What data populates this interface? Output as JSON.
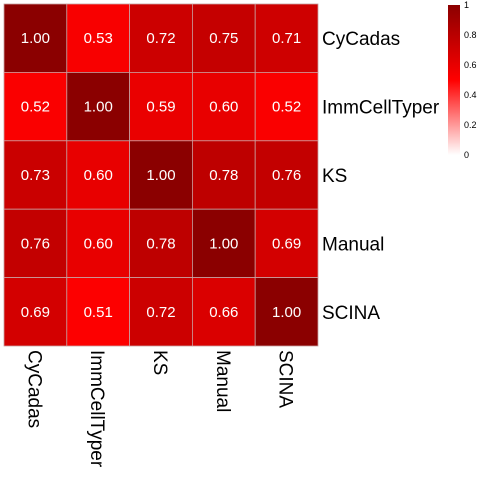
{
  "chart_data": {
    "type": "heatmap",
    "rows": [
      "CyCadas",
      "ImmCellTyper",
      "KS",
      "Manual",
      "SCINA"
    ],
    "columns": [
      "CyCadas",
      "ImmCellTyper",
      "KS",
      "Manual",
      "SCINA"
    ],
    "values": [
      [
        1.0,
        0.53,
        0.72,
        0.75,
        0.71
      ],
      [
        0.52,
        1.0,
        0.59,
        0.6,
        0.52
      ],
      [
        0.73,
        0.6,
        1.0,
        0.78,
        0.76
      ],
      [
        0.76,
        0.6,
        0.78,
        1.0,
        0.69
      ],
      [
        0.69,
        0.51,
        0.72,
        0.66,
        1.0
      ]
    ],
    "cell_labels": [
      [
        "1.00",
        "0.53",
        "0.72",
        "0.75",
        "0.71"
      ],
      [
        "0.52",
        "1.00",
        "0.59",
        "0.60",
        "0.52"
      ],
      [
        "0.73",
        "0.60",
        "1.00",
        "0.78",
        "0.76"
      ],
      [
        "0.76",
        "0.60",
        "0.78",
        "1.00",
        "0.69"
      ],
      [
        "0.69",
        "0.51",
        "0.72",
        "0.66",
        "1.00"
      ]
    ],
    "legend": {
      "ticks": [
        "0",
        "0.2",
        "0.4",
        "0.6",
        "0.8",
        "1"
      ],
      "range": [
        0,
        1
      ],
      "colors": [
        "#ffffff",
        "#ff0000",
        "#8b0000"
      ],
      "placement": "top-right"
    },
    "title": "",
    "xlabel": "",
    "ylabel": "",
    "grid": true
  }
}
